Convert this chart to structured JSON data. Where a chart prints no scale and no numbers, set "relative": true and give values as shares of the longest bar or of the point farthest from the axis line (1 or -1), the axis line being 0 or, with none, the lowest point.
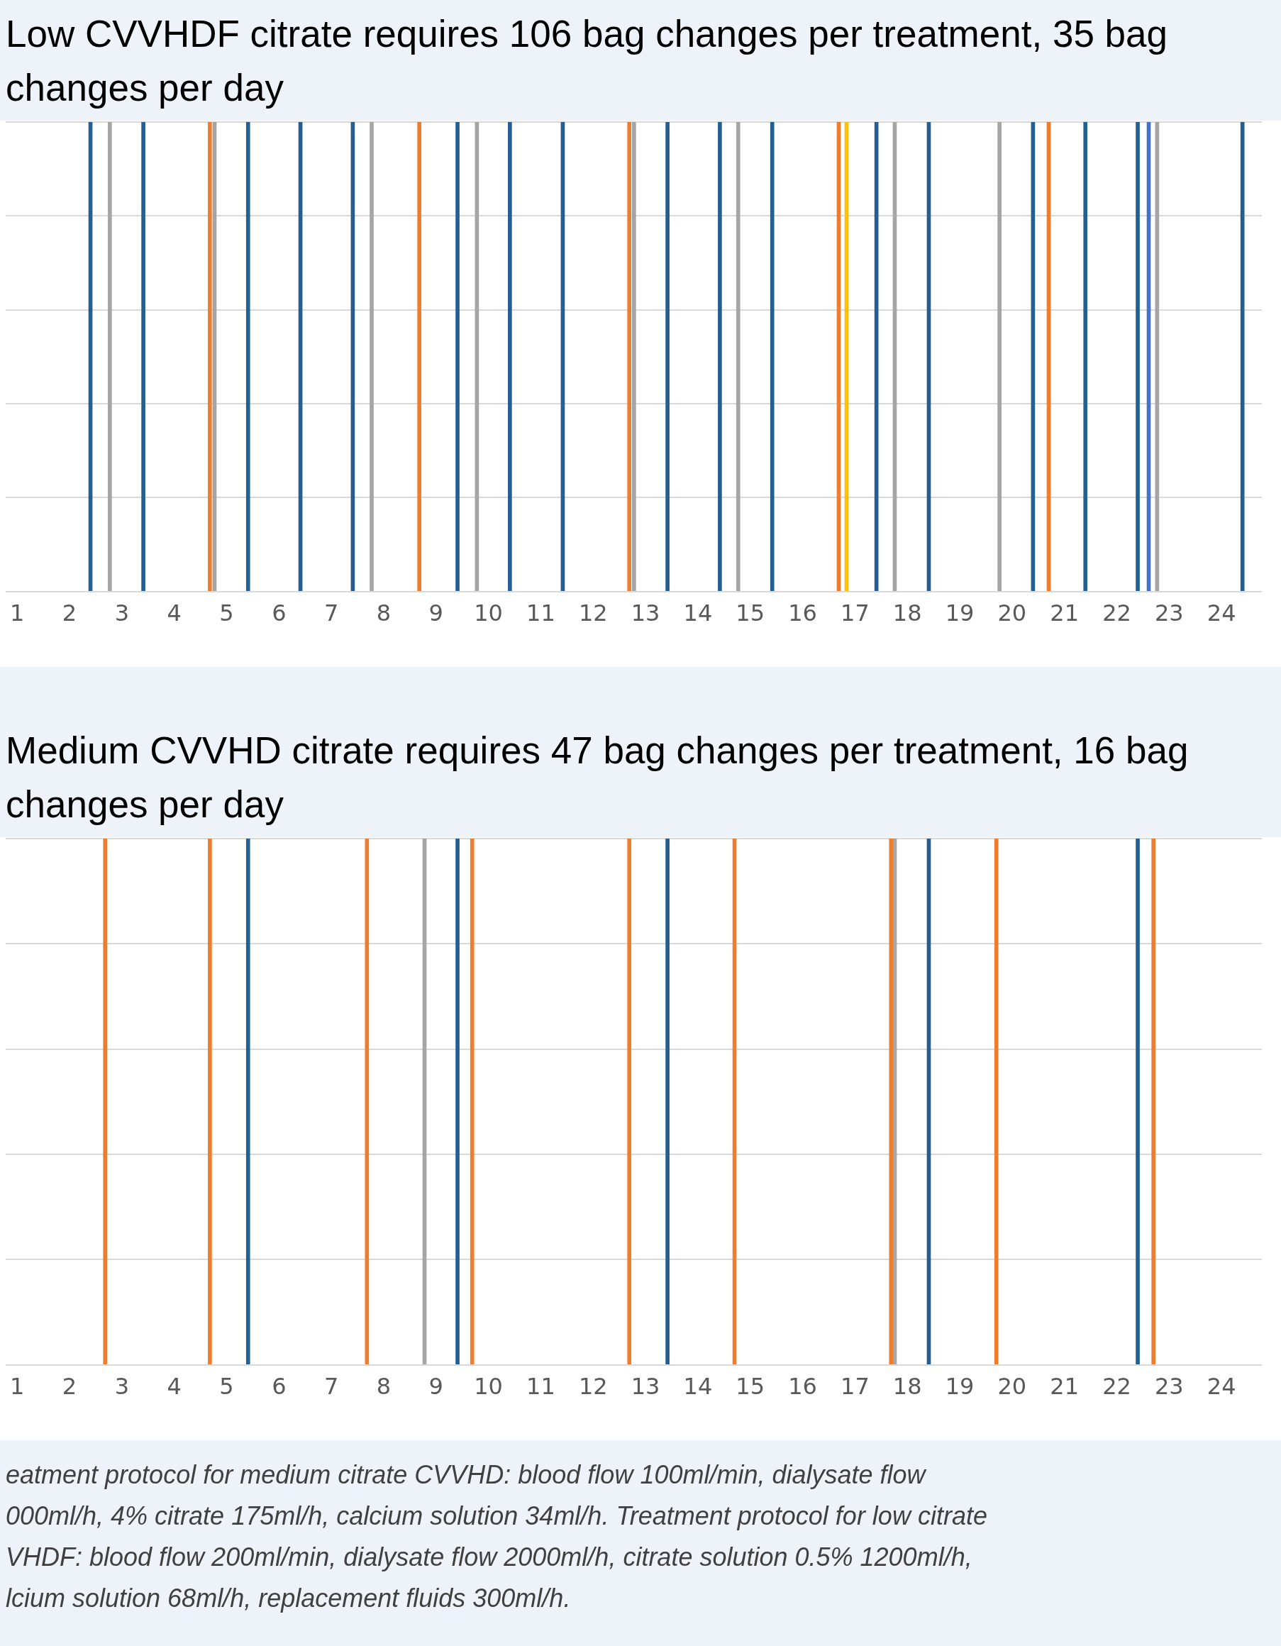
{
  "chart_data": [
    {
      "type": "bar",
      "title": "Low CVVHDF citrate requires 106 bag changes per treatment, 35 bag changes per day",
      "relative": true,
      "grid": "y",
      "xlim": [
        0.78,
        24.77
      ],
      "xticks": [
        1,
        2,
        3,
        4,
        5,
        6,
        7,
        8,
        9,
        10,
        11,
        12,
        13,
        14,
        15,
        16,
        17,
        18,
        19,
        20,
        21,
        22,
        23,
        24
      ],
      "series": [
        {
          "color": "#255e91",
          "x": [
            2.4,
            3.41,
            5.41,
            6.41,
            7.41,
            9.41,
            10.41,
            11.42,
            13.42,
            14.42,
            15.42,
            17.41,
            18.41,
            20.4,
            21.4,
            22.4,
            24.4
          ],
          "values": [
            1,
            1,
            1,
            1,
            1,
            1,
            1,
            1,
            1,
            1,
            1,
            1,
            1,
            1,
            1,
            1,
            1
          ]
        },
        {
          "color": "#ed7d31",
          "x": [
            4.68,
            8.68,
            12.69,
            16.69,
            20.7
          ],
          "values": [
            1,
            1,
            1,
            1,
            1
          ]
        },
        {
          "color": "#a5a5a5",
          "x": [
            2.77,
            4.77,
            7.77,
            9.78,
            12.78,
            14.77,
            17.76,
            19.76,
            22.77
          ],
          "values": [
            1,
            1,
            1,
            1,
            1,
            1,
            1,
            1,
            1
          ]
        },
        {
          "color": "#ffc000",
          "x": [
            16.84
          ],
          "values": [
            1
          ]
        },
        {
          "color": "#4472c4",
          "x": [
            22.61
          ],
          "values": [
            1
          ]
        }
      ]
    },
    {
      "type": "bar",
      "title": "Medium CVVHD citrate requires 47 bag changes per treatment, 16 bag changes per day",
      "relative": true,
      "grid": "y",
      "xlim": [
        0.78,
        24.77
      ],
      "xticks": [
        1,
        2,
        3,
        4,
        5,
        6,
        7,
        8,
        9,
        10,
        11,
        12,
        13,
        14,
        15,
        16,
        17,
        18,
        19,
        20,
        21,
        22,
        23,
        24
      ],
      "series": [
        {
          "color": "#255e91",
          "x": [
            5.41,
            9.41,
            13.42,
            18.41,
            22.4
          ],
          "values": [
            1,
            1,
            1,
            1,
            1
          ]
        },
        {
          "color": "#ed7d31",
          "x": [
            2.68,
            4.68,
            7.68,
            9.69,
            12.69,
            14.7,
            17.69,
            19.7,
            22.7
          ],
          "values": [
            1,
            1,
            1,
            1,
            1,
            1,
            1,
            1,
            1
          ]
        },
        {
          "color": "#a5a5a5",
          "x": [
            8.78,
            17.76
          ],
          "values": [
            1,
            1
          ]
        }
      ],
      "annotations": [
        "eatment protocol for medium citrate CVVHD: blood flow 100ml/min, dialysate flow",
        "000ml/h, 4% citrate 175ml/h, calcium solution 34ml/h. Treatment protocol for low citrate",
        "VHDF: blood flow 200ml/min, dialysate flow 2000ml/h, citrate solution 0.5% 1200ml/h,",
        "lcium solution 68ml/h, replacement fluids 300ml/h."
      ]
    }
  ]
}
